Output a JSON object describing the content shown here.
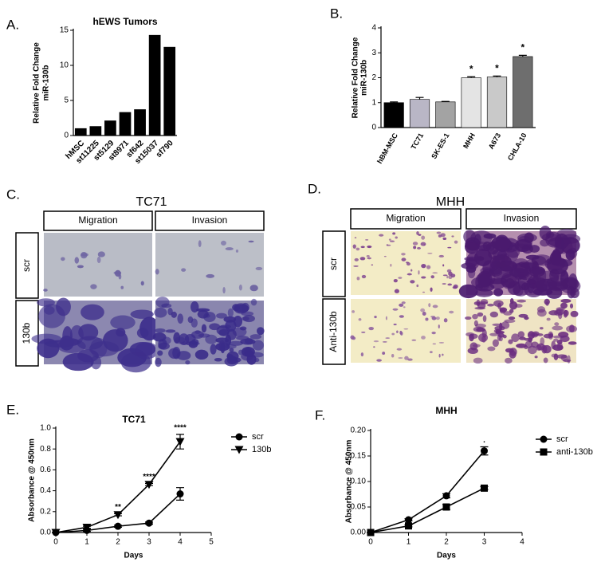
{
  "chart_data": [
    {
      "type": "bar",
      "panel": "A.",
      "title": "hEWS Tumors",
      "ylabel": [
        "Relative Fold Change",
        "miR-130b"
      ],
      "categories": [
        "hMSC",
        "st11225",
        "st5129",
        "st8971",
        "sf642",
        "st15037",
        "sf790"
      ],
      "values": [
        1,
        1.3,
        2.1,
        3.3,
        3.7,
        14.3,
        12.6
      ],
      "color": "#000000",
      "ylim": [
        0,
        15
      ],
      "yticks": [
        0,
        5,
        10,
        15
      ]
    },
    {
      "type": "bar",
      "panel": "B.",
      "ylabel": [
        "Relative Fold Change",
        "miR-130b"
      ],
      "categories": [
        "hBM-MSC",
        "TC71",
        "SK-ES-1",
        "MHH",
        "A673",
        "CHLA-10"
      ],
      "values": [
        1,
        1.13,
        1.03,
        2.0,
        2.03,
        2.85
      ],
      "errors": [
        0.03,
        0.08,
        0.02,
        0.04,
        0.04,
        0.05
      ],
      "colors": [
        "#000000",
        "#b9b6c6",
        "#a3a3a3",
        "#e4e4e4",
        "#c9c9c9",
        "#6e6e6e"
      ],
      "significance": [
        null,
        null,
        null,
        "*",
        "*",
        "*"
      ],
      "ylim": [
        0,
        4
      ],
      "yticks": [
        0,
        1,
        2,
        3,
        4
      ]
    },
    {
      "type": "line",
      "panel": "E.",
      "title": "TC71",
      "xlabel": "Days",
      "ylabel": "Absorbance @ 450nm",
      "x": [
        0,
        1,
        2,
        3,
        4
      ],
      "series": [
        {
          "name": "scr",
          "color": "#000000",
          "marker": "circle",
          "values": [
            0,
            0.02,
            0.06,
            0.09,
            0.37
          ],
          "errors": [
            0,
            0.01,
            0.01,
            0.01,
            0.06
          ]
        },
        {
          "name": "130b",
          "color": "#000000",
          "marker": "triangle-down",
          "values": [
            0,
            0.05,
            0.17,
            0.46,
            0.87
          ],
          "errors": [
            0,
            0.01,
            0.01,
            0.01,
            0.07
          ]
        }
      ],
      "annotations": [
        {
          "x": 2,
          "text": "**"
        },
        {
          "x": 3,
          "text": "****"
        },
        {
          "x": 4,
          "text": "****"
        }
      ],
      "xlim": [
        0,
        5
      ],
      "xticks": [
        0,
        1,
        2,
        3,
        4,
        5
      ],
      "ylim": [
        0,
        1
      ],
      "yticks": [
        {
          "value": 0,
          "label": "0.0"
        },
        0.2,
        0.4,
        0.6,
        0.8,
        {
          "value": 1,
          "label": "1.0"
        }
      ]
    },
    {
      "type": "line",
      "panel": "F.",
      "title": "MHH",
      "xlabel": "Days",
      "ylabel": "Absorbance @ 450nm",
      "x": [
        0,
        1,
        2,
        3
      ],
      "series": [
        {
          "name": "scr",
          "color": "#000000",
          "marker": "circle",
          "values": [
            0,
            0.025,
            0.072,
            0.16
          ],
          "errors": [
            0,
            0.002,
            0.004,
            0.008
          ]
        },
        {
          "name": "anti-130b",
          "color": "#000000",
          "marker": "square",
          "values": [
            0,
            0.013,
            0.05,
            0.087
          ],
          "errors": [
            0,
            0.002,
            0.005,
            0.003
          ]
        }
      ],
      "annotations": [
        {
          "x": 3,
          "text": "."
        }
      ],
      "xlim": [
        0,
        4
      ],
      "xticks": [
        0,
        1,
        2,
        3,
        4
      ],
      "ylim": [
        0,
        0.2
      ],
      "yticks": [
        {
          "value": 0,
          "label": "0.00"
        },
        {
          "value": 0.05,
          "label": "0.05"
        },
        {
          "value": 0.1,
          "label": "0.10"
        },
        {
          "value": 0.15,
          "label": "0.15"
        },
        {
          "value": 0.2,
          "label": "0.20"
        }
      ]
    }
  ],
  "image_panels": [
    {
      "panel": "C.",
      "title": "TC71",
      "columns": [
        "Migration",
        "Invasion"
      ],
      "rows": [
        "scr",
        "130b"
      ]
    },
    {
      "panel": "D.",
      "title": "MHH",
      "columns": [
        "Migration",
        "Invasion"
      ],
      "rows": [
        "scr",
        "Anti-130b"
      ]
    }
  ]
}
